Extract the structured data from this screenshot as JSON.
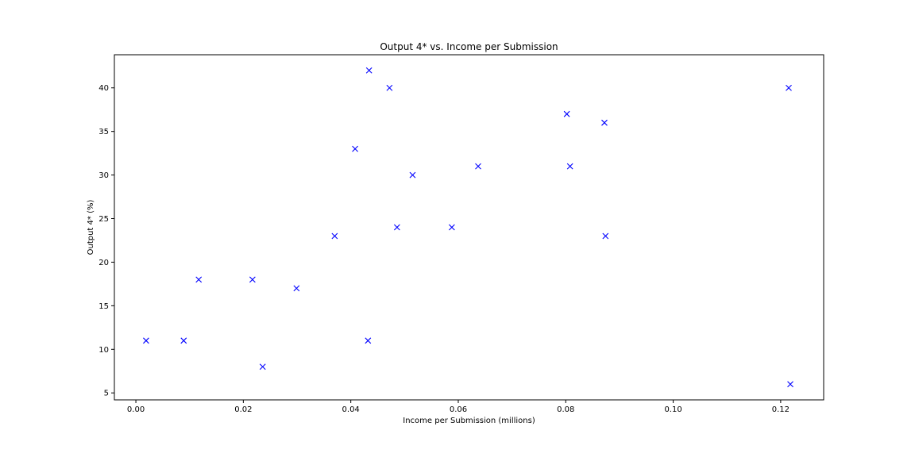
{
  "chart_data": {
    "type": "scatter",
    "title": "Output 4* vs. Income per Submission",
    "xlabel": "Income per Submission (millions)",
    "ylabel": "Output 4* (%)",
    "xlim": [
      -0.004,
      0.128
    ],
    "ylim": [
      4.2,
      43.8
    ],
    "xticks": [
      0.0,
      0.02,
      0.04,
      0.06,
      0.08,
      0.1,
      0.12
    ],
    "xtick_labels": [
      "0.00",
      "0.02",
      "0.04",
      "0.06",
      "0.08",
      "0.10",
      "0.12"
    ],
    "yticks": [
      5,
      10,
      15,
      20,
      25,
      30,
      35,
      40
    ],
    "ytick_labels": [
      "5",
      "10",
      "15",
      "20",
      "25",
      "30",
      "35",
      "40"
    ],
    "grid": false,
    "marker": "x",
    "marker_color": "#0000ff",
    "points": [
      {
        "x": 0.0019,
        "y": 11
      },
      {
        "x": 0.0089,
        "y": 11
      },
      {
        "x": 0.0117,
        "y": 18
      },
      {
        "x": 0.0217,
        "y": 18
      },
      {
        "x": 0.0236,
        "y": 8
      },
      {
        "x": 0.0299,
        "y": 17
      },
      {
        "x": 0.037,
        "y": 23
      },
      {
        "x": 0.0408,
        "y": 33
      },
      {
        "x": 0.0432,
        "y": 11
      },
      {
        "x": 0.0434,
        "y": 42
      },
      {
        "x": 0.0472,
        "y": 40
      },
      {
        "x": 0.0486,
        "y": 24
      },
      {
        "x": 0.0515,
        "y": 30
      },
      {
        "x": 0.0588,
        "y": 24
      },
      {
        "x": 0.0637,
        "y": 31
      },
      {
        "x": 0.0802,
        "y": 37
      },
      {
        "x": 0.0808,
        "y": 31
      },
      {
        "x": 0.0872,
        "y": 36
      },
      {
        "x": 0.0874,
        "y": 23
      },
      {
        "x": 0.1215,
        "y": 40
      },
      {
        "x": 0.1218,
        "y": 6
      }
    ]
  }
}
